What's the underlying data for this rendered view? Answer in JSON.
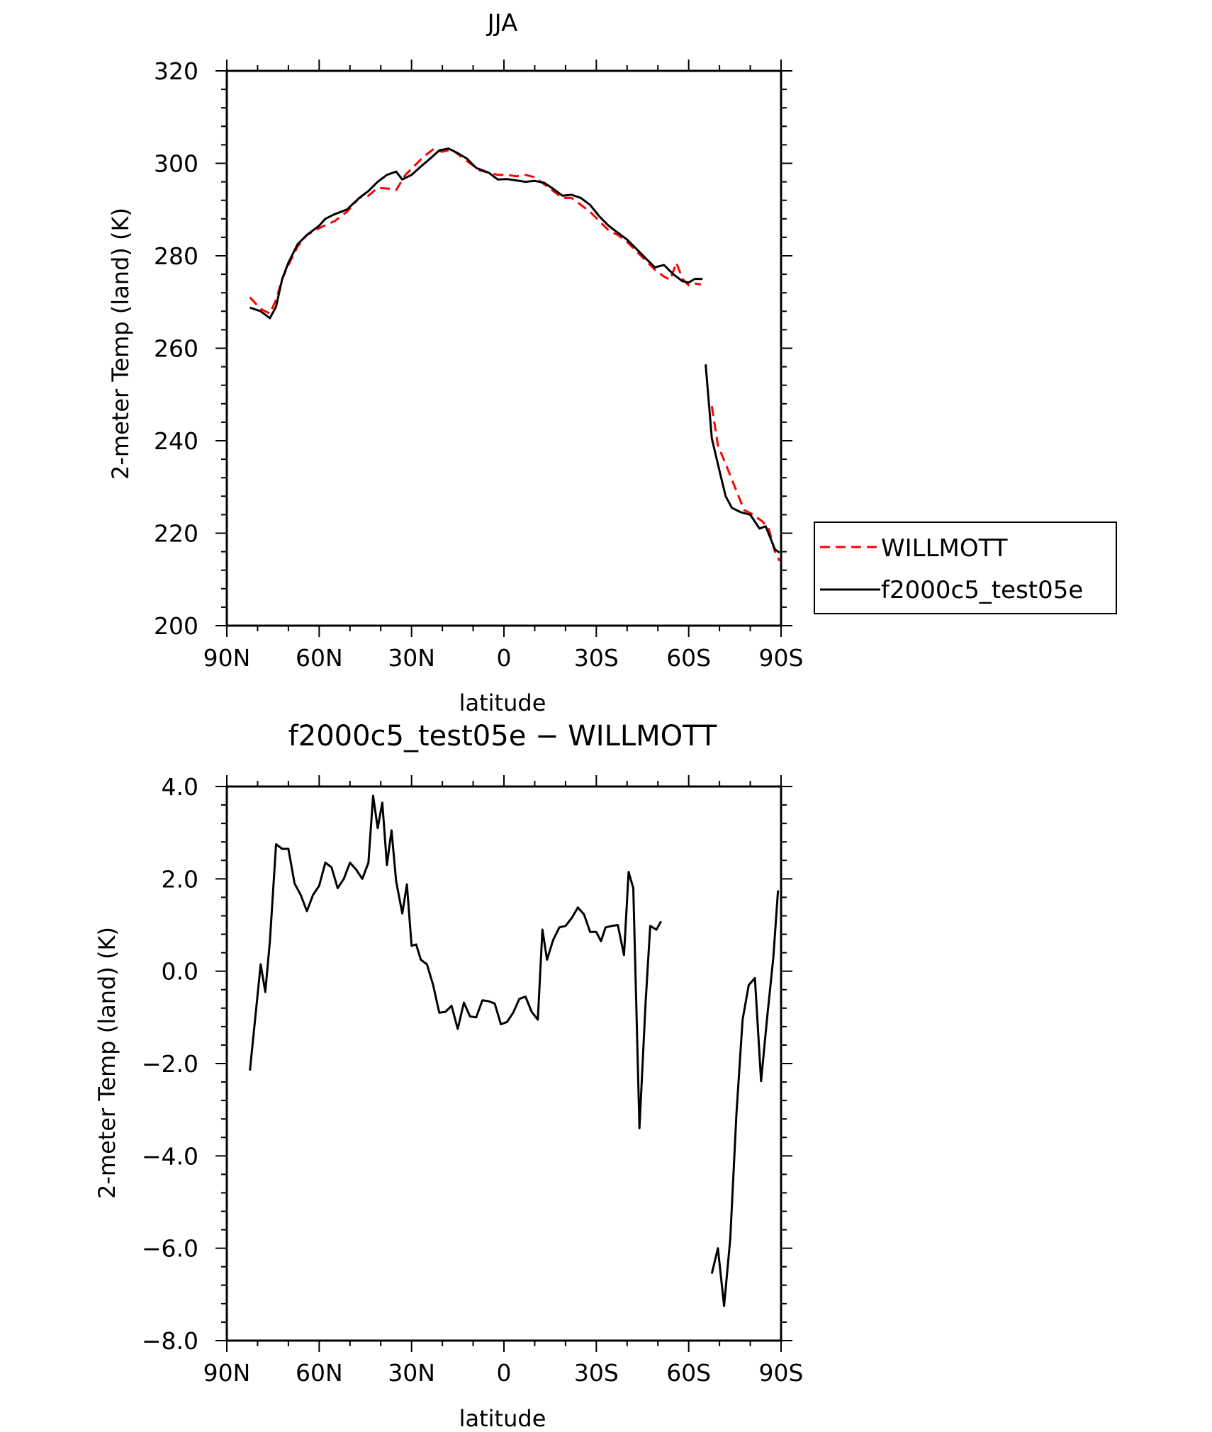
{
  "chart_data": [
    {
      "type": "line",
      "title": "JJA",
      "xlabel": "latitude",
      "ylabel": "2-meter Temp (land) (K)",
      "xlim": [
        90,
        -90
      ],
      "ylim": [
        200,
        320
      ],
      "x_ticks": [
        "90N",
        "60N",
        "30N",
        "0",
        "30S",
        "60S",
        "90S"
      ],
      "y_ticks": [
        "200",
        "220",
        "240",
        "260",
        "280",
        "300",
        "320"
      ],
      "grid": false,
      "legend": {
        "placement": "right",
        "entries": [
          {
            "name": "WILLMOTT",
            "color": "#ff0000",
            "dash": "dashed"
          },
          {
            "name": "f2000c5_test05e",
            "color": "#000000",
            "dash": "solid"
          }
        ]
      },
      "series": [
        {
          "name": "WILLMOTT",
          "color": "#ff0000",
          "dash": "dashed",
          "segments": [
            [
              [
                82.5,
                271.0
              ],
              [
                79,
                268.5
              ],
              [
                76,
                267.5
              ],
              [
                74,
                270.5
              ],
              [
                72,
                275
              ],
              [
                70,
                278
              ],
              [
                67,
                282
              ],
              [
                64,
                284.5
              ],
              [
                60,
                286
              ],
              [
                55,
                287.5
              ],
              [
                51,
                289.5
              ],
              [
                47,
                292.5
              ],
              [
                44,
                293
              ],
              [
                41,
                294.7
              ],
              [
                37,
                294.5
              ],
              [
                35,
                294.2
              ],
              [
                32,
                297.5
              ],
              [
                29,
                299.5
              ],
              [
                26,
                301.5
              ],
              [
                23,
                303.0
              ],
              [
                20,
                302.5
              ],
              [
                17,
                303.0
              ],
              [
                14,
                301.5
              ],
              [
                11,
                300
              ],
              [
                8,
                298.5
              ],
              [
                5,
                298
              ],
              [
                2,
                297.5
              ],
              [
                -1,
                297.5
              ],
              [
                -4,
                297.2
              ],
              [
                -7,
                297.5
              ],
              [
                -10,
                297
              ],
              [
                -13,
                295.5
              ],
              [
                -16,
                294
              ],
              [
                -19,
                292.5
              ],
              [
                -22,
                292.5
              ],
              [
                -25,
                291
              ],
              [
                -28,
                289.5
              ],
              [
                -31,
                287.5
              ],
              [
                -34,
                285.5
              ],
              [
                -37,
                284.5
              ],
              [
                -40,
                283
              ],
              [
                -43,
                281
              ],
              [
                -46,
                279
              ],
              [
                -49,
                277
              ],
              [
                -52,
                275.5
              ],
              [
                -54,
                274.8
              ],
              [
                -56,
                278.5
              ],
              [
                -58,
                275
              ],
              [
                -60,
                273.6
              ],
              [
                -62,
                274
              ],
              [
                -64,
                273.8
              ]
            ],
            [
              [
                -67.5,
                247.5
              ],
              [
                -69.5,
                239
              ],
              [
                -72,
                235
              ],
              [
                -75,
                230
              ],
              [
                -78,
                225
              ],
              [
                -81,
                224
              ],
              [
                -84,
                222.5
              ],
              [
                -86,
                221
              ],
              [
                -88,
                216
              ],
              [
                -89.5,
                214
              ]
            ]
          ]
        },
        {
          "name": "f2000c5_test05e",
          "color": "#000000",
          "dash": "solid",
          "segments": [
            [
              [
                82.5,
                268.8
              ],
              [
                79,
                268
              ],
              [
                76,
                266.5
              ],
              [
                74,
                269
              ],
              [
                72,
                275
              ],
              [
                70,
                278.5
              ],
              [
                67,
                282.5
              ],
              [
                64,
                284.5
              ],
              [
                60,
                286.5
              ],
              [
                58,
                288
              ],
              [
                55,
                289
              ],
              [
                51,
                290
              ],
              [
                47,
                292.5
              ],
              [
                44,
                294
              ],
              [
                41,
                296
              ],
              [
                38,
                297.5
              ],
              [
                35,
                298.2
              ],
              [
                33,
                296.5
              ],
              [
                30,
                297.5
              ],
              [
                27,
                299.3
              ],
              [
                24,
                301
              ],
              [
                21,
                302.8
              ],
              [
                18,
                303.2
              ],
              [
                15,
                302.2
              ],
              [
                12,
                301
              ],
              [
                9,
                299
              ],
              [
                5,
                298
              ],
              [
                2,
                296.5
              ],
              [
                -1,
                296.6
              ],
              [
                -4,
                296.3
              ],
              [
                -7,
                296
              ],
              [
                -10,
                296.2
              ],
              [
                -13,
                295.8
              ],
              [
                -16,
                294.5
              ],
              [
                -19,
                293
              ],
              [
                -22,
                293.2
              ],
              [
                -25,
                292.5
              ],
              [
                -28,
                291
              ],
              [
                -31,
                288.5
              ],
              [
                -34,
                286.5
              ],
              [
                -37,
                285
              ],
              [
                -40,
                283.5
              ],
              [
                -43,
                281.5
              ],
              [
                -46,
                279.5
              ],
              [
                -49,
                277.5
              ],
              [
                -52,
                278
              ],
              [
                -55,
                276
              ],
              [
                -58,
                274.5
              ],
              [
                -60,
                274.2
              ],
              [
                -62,
                275
              ],
              [
                -64.5,
                275
              ]
            ],
            [
              [
                -65.5,
                256.5
              ],
              [
                -67.5,
                240.5
              ],
              [
                -70,
                233.5
              ],
              [
                -72,
                228
              ],
              [
                -74,
                225.5
              ],
              [
                -77,
                224.5
              ],
              [
                -80,
                224
              ],
              [
                -83,
                221
              ],
              [
                -85,
                221.5
              ],
              [
                -88,
                216.5
              ],
              [
                -89.5,
                215.8
              ]
            ]
          ]
        }
      ]
    },
    {
      "type": "line",
      "title": "f2000c5_test05e − WILLMOTT",
      "xlabel": "latitude",
      "ylabel": "2-meter Temp (land) (K)",
      "xlim": [
        90,
        -90
      ],
      "ylim": [
        -8.0,
        4.0
      ],
      "x_ticks": [
        "90N",
        "60N",
        "30N",
        "0",
        "30S",
        "60S",
        "90S"
      ],
      "y_ticks": [
        "−8.0",
        "−6.0",
        "−4.0",
        "−2.0",
        "0.0",
        "2.0",
        "4.0"
      ],
      "grid": false,
      "series": [
        {
          "color": "#000000",
          "dash": "solid",
          "segments": [
            [
              [
                82.5,
                -2.15
              ],
              [
                79,
                0.15
              ],
              [
                77.5,
                -0.45
              ],
              [
                76,
                0.65
              ],
              [
                74,
                2.75
              ],
              [
                72,
                2.65
              ],
              [
                70,
                2.65
              ],
              [
                68,
                1.9
              ],
              [
                66,
                1.65
              ],
              [
                64,
                1.3
              ],
              [
                62,
                1.65
              ],
              [
                60,
                1.85
              ],
              [
                58,
                2.35
              ],
              [
                56,
                2.25
              ],
              [
                54,
                1.8
              ],
              [
                52,
                2.0
              ],
              [
                50,
                2.35
              ],
              [
                48,
                2.2
              ],
              [
                46,
                2.0
              ],
              [
                44,
                2.35
              ],
              [
                42.5,
                3.8
              ],
              [
                41,
                3.1
              ],
              [
                39.5,
                3.65
              ],
              [
                38,
                2.3
              ],
              [
                36.5,
                3.05
              ],
              [
                35,
                1.95
              ],
              [
                33,
                1.25
              ],
              [
                31.5,
                1.88
              ],
              [
                30,
                0.55
              ],
              [
                28.5,
                0.58
              ],
              [
                27,
                0.25
              ],
              [
                25,
                0.15
              ],
              [
                23,
                -0.3
              ],
              [
                21,
                -0.9
              ],
              [
                19,
                -0.88
              ],
              [
                17,
                -0.75
              ],
              [
                15,
                -1.25
              ],
              [
                13,
                -0.68
              ],
              [
                11,
                -0.98
              ],
              [
                9,
                -1.0
              ],
              [
                7,
                -0.63
              ],
              [
                5,
                -0.65
              ],
              [
                3,
                -0.7
              ],
              [
                1,
                -1.15
              ],
              [
                -1,
                -1.1
              ],
              [
                -3,
                -0.9
              ],
              [
                -5,
                -0.6
              ],
              [
                -7,
                -0.55
              ],
              [
                -9,
                -0.88
              ],
              [
                -11,
                -1.05
              ],
              [
                -12.5,
                0.9
              ],
              [
                -14,
                0.25
              ],
              [
                -16,
                0.68
              ],
              [
                -18,
                0.95
              ],
              [
                -20,
                0.98
              ],
              [
                -22,
                1.15
              ],
              [
                -24,
                1.38
              ],
              [
                -26,
                1.23
              ],
              [
                -28,
                0.85
              ],
              [
                -30,
                0.85
              ],
              [
                -31.5,
                0.65
              ],
              [
                -33,
                0.95
              ],
              [
                -35,
                0.98
              ],
              [
                -37,
                1.0
              ],
              [
                -39,
                0.35
              ],
              [
                -40.5,
                2.15
              ],
              [
                -42,
                1.8
              ],
              [
                -44,
                -3.4
              ],
              [
                -46,
                -0.7
              ],
              [
                -47.5,
                0.98
              ],
              [
                -49.5,
                0.9
              ],
              [
                -51,
                1.08
              ]
            ],
            [
              [
                -67.5,
                -6.55
              ],
              [
                -69.5,
                -6.0
              ],
              [
                -71.5,
                -7.25
              ],
              [
                -73.5,
                -5.8
              ],
              [
                -75.5,
                -3.1
              ],
              [
                -77.5,
                -1.05
              ],
              [
                -79.5,
                -0.3
              ],
              [
                -81.5,
                -0.15
              ],
              [
                -83.5,
                -2.38
              ],
              [
                -85.5,
                -1.0
              ],
              [
                -87.5,
                0.3
              ],
              [
                -89,
                1.75
              ]
            ]
          ]
        }
      ]
    }
  ]
}
